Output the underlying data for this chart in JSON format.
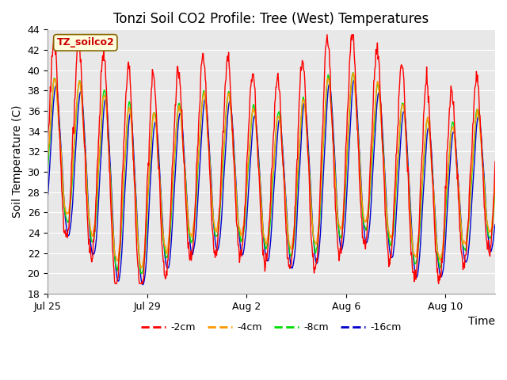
{
  "title": "Tonzi Soil CO2 Profile: Tree (West) Temperatures",
  "xlabel": "Time",
  "ylabel": "Soil Temperature (C)",
  "ylim": [
    18,
    44
  ],
  "plot_bg_color": "#e8e8e8",
  "legend_label": "TZ_soilco2",
  "series_labels": [
    "-2cm",
    "-4cm",
    "-8cm",
    "-16cm"
  ],
  "series_colors": [
    "#ff0000",
    "#ff9900",
    "#00dd00",
    "#0000cc"
  ],
  "title_fontsize": 12,
  "axis_label_fontsize": 10,
  "tick_fontsize": 9
}
